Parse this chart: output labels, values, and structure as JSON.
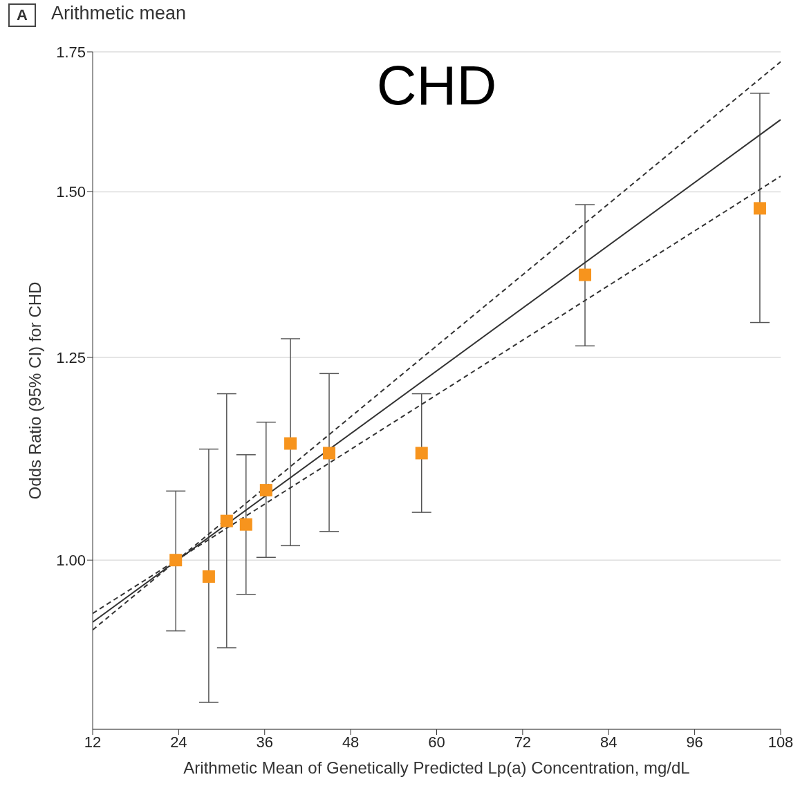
{
  "chart_data": {
    "type": "scatter",
    "title": "CHD",
    "subtitle": "Arithmetic mean",
    "annotations": [
      "A"
    ],
    "xlabel": "Arithmetic Mean of Genetically Predicted Lp(a) Concentration, mg/dL",
    "ylabel": "Odds Ratio (95% CI) for CHD",
    "log": "y",
    "xlim": [
      12,
      108
    ],
    "xticks": [
      12,
      24,
      36,
      48,
      60,
      72,
      84,
      96,
      108
    ],
    "ylim": [
      0.83,
      1.75
    ],
    "yticks": [
      {
        "value": 1,
        "label": "1.00"
      },
      {
        "value": 1.25,
        "label": "1.25"
      },
      {
        "value": 1.5,
        "label": "1.50"
      },
      {
        "value": 1.75,
        "label": "1.75"
      }
    ],
    "grid": "y",
    "series": [
      {
        "color": "#f7941d",
        "marker": "square",
        "x": [
          23.6,
          28.2,
          30.7,
          33.4,
          36.2,
          39.6,
          45.0,
          57.9,
          80.7,
          105.1
        ],
        "values": [
          1.0,
          0.982,
          1.044,
          1.04,
          1.08,
          1.137,
          1.125,
          1.125,
          1.369,
          1.473
        ],
        "errors": [
          [
            0.925,
            1.079
          ],
          [
            0.855,
            1.13
          ],
          [
            0.908,
            1.201
          ],
          [
            0.963,
            1.123
          ],
          [
            1.003,
            1.164
          ],
          [
            1.016,
            1.276
          ],
          [
            1.032,
            1.228
          ],
          [
            1.054,
            1.201
          ],
          [
            1.266,
            1.479
          ],
          [
            1.299,
            1.672
          ]
        ]
      },
      {
        "type": "line",
        "color": "#333333",
        "line_style": "solid",
        "x": [
          12,
          108
        ],
        "values": [
          0.934,
          1.624
        ]
      },
      {
        "type": "line",
        "color": "#333333",
        "line_style": "dashed",
        "x": [
          12,
          108
        ],
        "values": [
          0.926,
          1.731
        ]
      },
      {
        "type": "line",
        "color": "#333333",
        "line_style": "dashed",
        "x": [
          12,
          108
        ],
        "values": [
          0.943,
          1.526
        ]
      }
    ]
  }
}
